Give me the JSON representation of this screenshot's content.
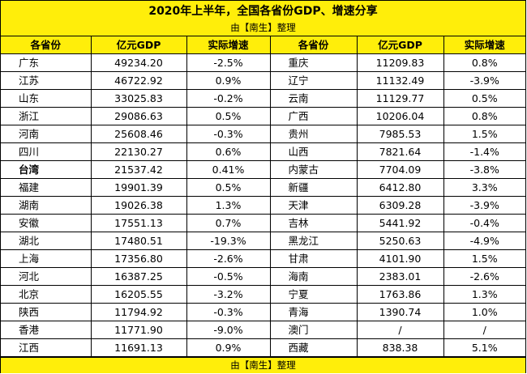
{
  "title": "2020年上半年，全国各省份GDP、增速分享",
  "subtitle": "由【南生】整理",
  "footer": "由【南生】整理",
  "colors": {
    "header_bg": "#ffee0a",
    "border": "#000000"
  },
  "headers": [
    "各省份",
    "亿元GDP",
    "实际增速",
    "各省份",
    "亿元GDP",
    "实际增速"
  ],
  "rows": [
    {
      "l_prov": "广东",
      "l_gdp": "49234.20",
      "l_growth": "-2.5%",
      "r_prov": "重庆",
      "r_gdp": "11209.83",
      "r_growth": "0.8%"
    },
    {
      "l_prov": "江苏",
      "l_gdp": "46722.92",
      "l_growth": "0.9%",
      "r_prov": "辽宁",
      "r_gdp": "11132.49",
      "r_growth": "-3.9%"
    },
    {
      "l_prov": "山东",
      "l_gdp": "33025.83",
      "l_growth": "-0.2%",
      "r_prov": "云南",
      "r_gdp": "11129.77",
      "r_growth": "0.5%"
    },
    {
      "l_prov": "浙江",
      "l_gdp": "29086.63",
      "l_growth": "0.5%",
      "r_prov": "广西",
      "r_gdp": "10206.04",
      "r_growth": "0.8%"
    },
    {
      "l_prov": "河南",
      "l_gdp": "25608.46",
      "l_growth": "-0.3%",
      "r_prov": "贵州",
      "r_gdp": "7985.53",
      "r_growth": "1.5%"
    },
    {
      "l_prov": "四川",
      "l_gdp": "22130.27",
      "l_growth": "0.6%",
      "r_prov": "山西",
      "r_gdp": "7821.64",
      "r_growth": "-1.4%"
    },
    {
      "l_prov": "台湾",
      "l_gdp": "21537.42",
      "l_growth": "0.41%",
      "r_prov": "内蒙古",
      "r_gdp": "7704.09",
      "r_growth": "-3.8%"
    },
    {
      "l_prov": "福建",
      "l_gdp": "19901.39",
      "l_growth": "0.5%",
      "r_prov": "新疆",
      "r_gdp": "6412.80",
      "r_growth": "3.3%"
    },
    {
      "l_prov": "湖南",
      "l_gdp": "19026.38",
      "l_growth": "1.3%",
      "r_prov": "天津",
      "r_gdp": "6309.28",
      "r_growth": "-3.9%"
    },
    {
      "l_prov": "安徽",
      "l_gdp": "17551.13",
      "l_growth": "0.7%",
      "r_prov": "吉林",
      "r_gdp": "5441.92",
      "r_growth": "-0.4%"
    },
    {
      "l_prov": "湖北",
      "l_gdp": "17480.51",
      "l_growth": "-19.3%",
      "r_prov": "黑龙江",
      "r_gdp": "5250.63",
      "r_growth": "-4.9%"
    },
    {
      "l_prov": "上海",
      "l_gdp": "17356.80",
      "l_growth": "-2.6%",
      "r_prov": "甘肃",
      "r_gdp": "4101.90",
      "r_growth": "1.5%"
    },
    {
      "l_prov": "河北",
      "l_gdp": "16387.25",
      "l_growth": "-0.5%",
      "r_prov": "海南",
      "r_gdp": "2383.01",
      "r_growth": "-2.6%"
    },
    {
      "l_prov": "北京",
      "l_gdp": "16205.55",
      "l_growth": "-3.2%",
      "r_prov": "宁夏",
      "r_gdp": "1763.86",
      "r_growth": "1.3%"
    },
    {
      "l_prov": "陕西",
      "l_gdp": "11794.92",
      "l_growth": "-0.3%",
      "r_prov": "青海",
      "r_gdp": "1390.74",
      "r_growth": "1.0%"
    },
    {
      "l_prov": "香港",
      "l_gdp": "11771.90",
      "l_growth": "-9.0%",
      "r_prov": "澳门",
      "r_gdp": "/",
      "r_growth": "/"
    },
    {
      "l_prov": "江西",
      "l_gdp": "11691.13",
      "l_growth": "0.9%",
      "r_prov": "西藏",
      "r_gdp": "838.38",
      "r_growth": "5.1%"
    }
  ],
  "bold_rows": [
    6
  ]
}
